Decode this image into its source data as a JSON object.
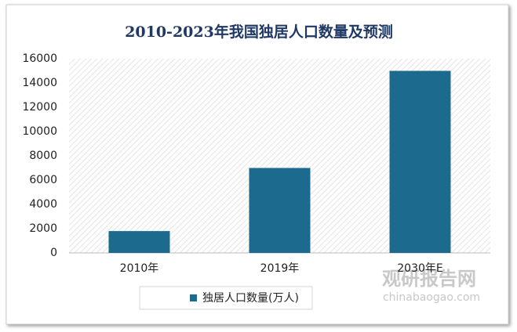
{
  "chart_data": {
    "type": "bar",
    "title": "2010-2023年我国独居人口数量及预测",
    "categories": [
      "2010年",
      "2019年",
      "2030年E"
    ],
    "series": [
      {
        "name": "独居人口数量(万人)",
        "color": "#1c6b8e",
        "values": [
          1800,
          7000,
          15000
        ]
      }
    ],
    "ylim": [
      0,
      16000
    ],
    "yticks": [
      0,
      2000,
      4000,
      6000,
      8000,
      10000,
      12000,
      14000,
      16000
    ],
    "grid": false,
    "legend": "bottom",
    "watermark": {
      "name": "观研报告网",
      "url": "chinabaogao.com"
    }
  }
}
